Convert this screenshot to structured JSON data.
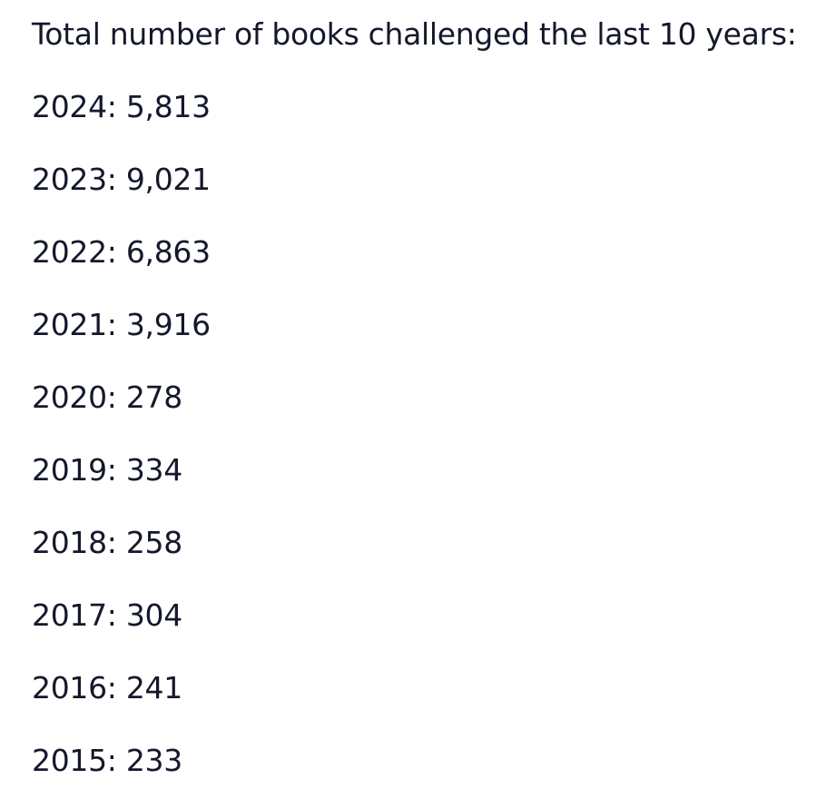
{
  "heading": "Total number of books challenged the last 10 years:",
  "entries": [
    {
      "year": "2024",
      "count": "5,813"
    },
    {
      "year": "2023",
      "count": "9,021"
    },
    {
      "year": "2022",
      "count": "6,863"
    },
    {
      "year": "2021",
      "count": "3,916"
    },
    {
      "year": "2020",
      "count": "278"
    },
    {
      "year": "2019",
      "count": "334"
    },
    {
      "year": "2018",
      "count": "258"
    },
    {
      "year": "2017",
      "count": "304"
    },
    {
      "year": "2016",
      "count": "241"
    },
    {
      "year": "2015",
      "count": "233"
    }
  ]
}
